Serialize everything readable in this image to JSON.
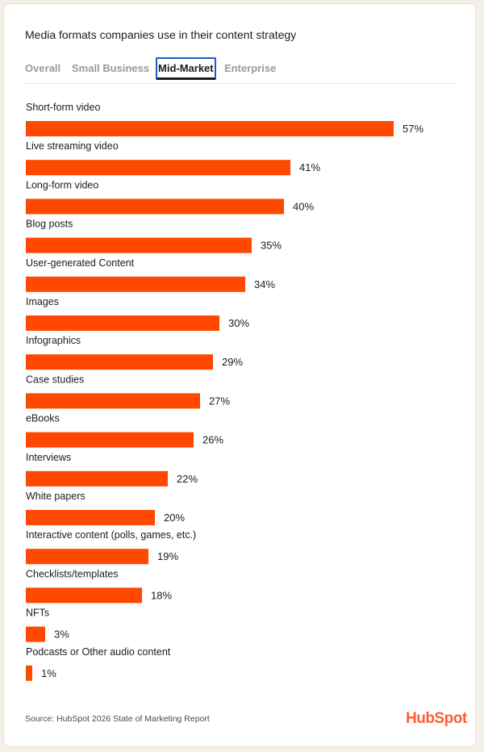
{
  "title": "Media formats companies use in their content strategy",
  "tabs": [
    {
      "label": "Overall",
      "active": false
    },
    {
      "label": "Small Business",
      "active": false
    },
    {
      "label": "Mid-Market",
      "active": true
    },
    {
      "label": "Enterprise",
      "active": false
    }
  ],
  "source": "Source: HubSpot 2026 State of Marketing Report",
  "logo_text": "HubSpot",
  "colors": {
    "bar": "#ff4800",
    "brand": "#ff5c35",
    "active_tab_outline": "#1e5bbf"
  },
  "chart_data": {
    "type": "bar",
    "orientation": "horizontal",
    "categories": [
      "Short-form video",
      "Live streaming video",
      "Long-form video",
      "Blog posts",
      "User-generated Content",
      "Images",
      "Infographics",
      "Case studies",
      "eBooks",
      "Interviews",
      "White papers",
      "Interactive content (polls, games, etc.)",
      "Checklists/templates",
      "NFTs",
      "Podcasts or Other audio content"
    ],
    "values": [
      57,
      41,
      40,
      35,
      34,
      30,
      29,
      27,
      26,
      22,
      20,
      19,
      18,
      3,
      1
    ],
    "value_suffix": "%",
    "grid": false,
    "legend": false
  }
}
